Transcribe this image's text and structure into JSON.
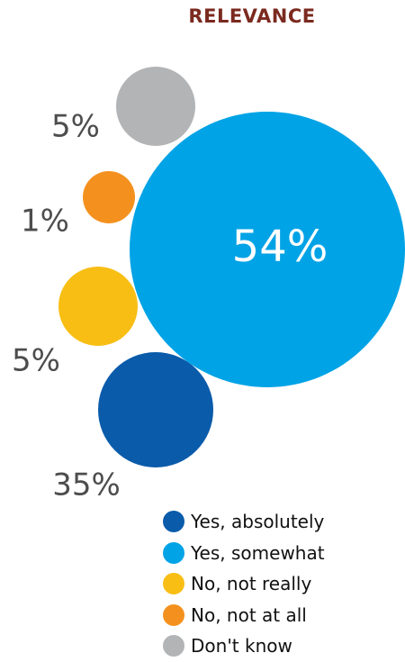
{
  "chart_data": {
    "type": "bubble",
    "title": "RELEVANCE",
    "legend_position": "bottom-right",
    "series": [
      {
        "name": "Yes, absolutely",
        "value": 35,
        "label": "35%",
        "color": "#0A5BAA"
      },
      {
        "name": "Yes, somewhat",
        "value": 54,
        "label": "54%",
        "color": "#00A3E6"
      },
      {
        "name": "No, not really",
        "value": 5,
        "label": "5%",
        "color": "#F8BE14"
      },
      {
        "name": "No, not at all",
        "value": 1,
        "label": "1%",
        "color": "#F4911E"
      },
      {
        "name": "Don't know",
        "value": 5,
        "label": "5%",
        "color": "#B2B4B6"
      }
    ]
  },
  "colors": {
    "title": "#7B2A1F",
    "label_dark": "#4D4D4D",
    "label_light": "#FFFFFF"
  }
}
